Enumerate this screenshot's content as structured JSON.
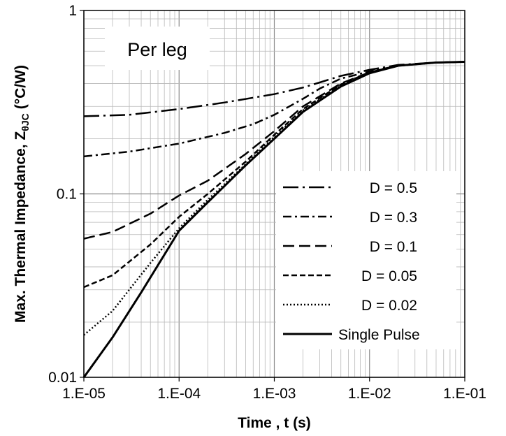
{
  "chart_data": {
    "type": "line",
    "title": "",
    "xlabel": "Time , t (s)",
    "ylabel_main": "Max. Thermal Impedance, Z",
    "ylabel_sub": "θJC",
    "ylabel_unit": "(°C/W)",
    "x_scale": "log",
    "y_scale": "log",
    "xlim": [
      1e-05,
      0.1
    ],
    "ylim": [
      0.01,
      1
    ],
    "x_ticks": [
      {
        "value": 1e-05,
        "label": "1.E-05"
      },
      {
        "value": 0.0001,
        "label": "1.E-04"
      },
      {
        "value": 0.001,
        "label": "1.E-03"
      },
      {
        "value": 0.01,
        "label": "1.E-02"
      },
      {
        "value": 0.1,
        "label": "1.E-01"
      }
    ],
    "y_ticks": [
      {
        "value": 0.01,
        "label": "0.01"
      },
      {
        "value": 0.1,
        "label": "0.1"
      },
      {
        "value": 1,
        "label": "1"
      }
    ],
    "grid": true,
    "legend_position": "right",
    "annotation": "Per leg",
    "series": [
      {
        "name": "D = 0.5",
        "dash": "long-dash-dot",
        "x": [
          1e-05,
          3e-05,
          0.0001,
          0.0003,
          0.001,
          0.002,
          0.003,
          0.005,
          0.01,
          0.02,
          0.05,
          0.1
        ],
        "y": [
          0.265,
          0.27,
          0.29,
          0.315,
          0.35,
          0.38,
          0.405,
          0.44,
          0.475,
          0.505,
          0.52,
          0.525
        ]
      },
      {
        "name": "D = 0.3",
        "dash": "dash-dot",
        "x": [
          1e-05,
          3e-05,
          0.0001,
          0.0003,
          0.0006,
          0.001,
          0.002,
          0.003,
          0.005,
          0.01,
          0.02,
          0.05,
          0.1
        ],
        "y": [
          0.16,
          0.17,
          0.188,
          0.215,
          0.24,
          0.27,
          0.33,
          0.375,
          0.425,
          0.465,
          0.5,
          0.52,
          0.525
        ]
      },
      {
        "name": "D = 0.1",
        "dash": "long-dash",
        "x": [
          1e-05,
          2e-05,
          5e-05,
          0.0001,
          0.0002,
          0.0005,
          0.001,
          0.002,
          0.005,
          0.01,
          0.02,
          0.05,
          0.1
        ],
        "y": [
          0.057,
          0.062,
          0.078,
          0.098,
          0.118,
          0.165,
          0.22,
          0.3,
          0.4,
          0.46,
          0.5,
          0.52,
          0.525
        ]
      },
      {
        "name": "D = 0.05",
        "dash": "short-dash",
        "x": [
          1e-05,
          2e-05,
          5e-05,
          0.0001,
          0.0002,
          0.0005,
          0.001,
          0.002,
          0.005,
          0.01,
          0.02,
          0.05,
          0.1
        ],
        "y": [
          0.031,
          0.036,
          0.053,
          0.075,
          0.1,
          0.15,
          0.21,
          0.29,
          0.395,
          0.46,
          0.5,
          0.52,
          0.525
        ]
      },
      {
        "name": "D = 0.02",
        "dash": "dotted",
        "x": [
          1e-05,
          2e-05,
          5e-05,
          0.0001,
          0.0002,
          0.0005,
          0.001,
          0.002,
          0.005,
          0.01,
          0.02,
          0.05,
          0.1
        ],
        "y": [
          0.017,
          0.023,
          0.042,
          0.065,
          0.093,
          0.145,
          0.205,
          0.285,
          0.39,
          0.46,
          0.5,
          0.52,
          0.525
        ]
      },
      {
        "name": "Single Pulse",
        "dash": "solid",
        "x": [
          1e-05,
          2e-05,
          4e-05,
          0.0001,
          0.0002,
          0.0005,
          0.001,
          0.002,
          0.005,
          0.01,
          0.02,
          0.05,
          0.1
        ],
        "y": [
          0.01,
          0.0165,
          0.029,
          0.063,
          0.09,
          0.143,
          0.2,
          0.28,
          0.385,
          0.455,
          0.5,
          0.52,
          0.525
        ]
      }
    ]
  }
}
